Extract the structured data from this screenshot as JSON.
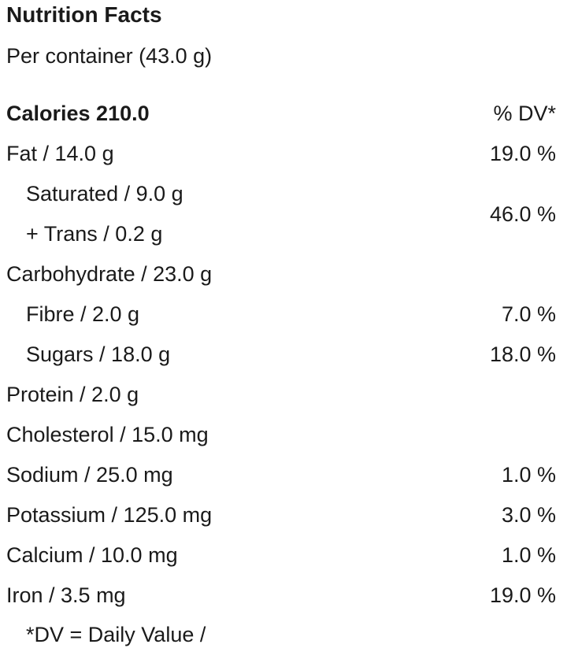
{
  "title": "Nutrition Facts",
  "serving": "Per container (43.0 g)",
  "calories": {
    "label": "Calories 210.0",
    "dv_header": "% DV*"
  },
  "fat": {
    "label": "Fat / 14.0 g",
    "dv": "19.0 %"
  },
  "saturated": {
    "label": "Saturated / 9.0 g"
  },
  "trans": {
    "label": "+ Trans / 0.2 g"
  },
  "sat_trans_dv": "46.0 %",
  "carbohydrate": {
    "label": "Carbohydrate / 23.0 g"
  },
  "fibre": {
    "label": "Fibre / 2.0 g",
    "dv": "7.0 %"
  },
  "sugars": {
    "label": "Sugars / 18.0 g",
    "dv": "18.0 %"
  },
  "protein": {
    "label": "Protein / 2.0 g"
  },
  "cholesterol": {
    "label": "Cholesterol / 15.0 mg"
  },
  "sodium": {
    "label": "Sodium / 25.0 mg",
    "dv": "1.0 %"
  },
  "potassium": {
    "label": "Potassium / 125.0 mg",
    "dv": "3.0 %"
  },
  "calcium": {
    "label": "Calcium / 10.0 mg",
    "dv": "1.0 %"
  },
  "iron": {
    "label": "Iron / 3.5 mg",
    "dv": "19.0 %"
  },
  "footnote": "*DV = Daily Value /"
}
